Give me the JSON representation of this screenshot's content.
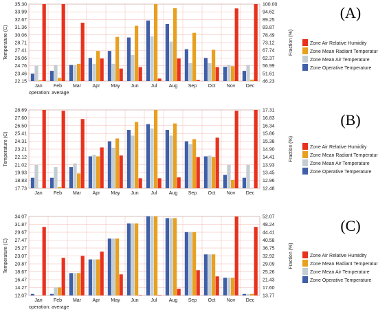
{
  "colors": {
    "humidity": "#e8321e",
    "radiant": "#e8a020",
    "mean_air": "#c3cdd2",
    "operative": "#3f5fa8",
    "grid": "#f0b8b0"
  },
  "chart_data": [
    {
      "type": "bar",
      "panel_label": "(A)",
      "ylabel_left": "Temperature (C)",
      "ylabel_right": "Fraction (%)",
      "note": "operation: average",
      "categories": [
        "Jan",
        "Feb",
        "Mar",
        "Apr",
        "May",
        "Jun",
        "Jul",
        "Aug",
        "Sep",
        "Oct",
        "Nov",
        "Dec"
      ],
      "yticks_left": [
        "22.15",
        "23.46",
        "24.76",
        "26.06",
        "27.41",
        "28.71",
        "30.06",
        "31.36",
        "32.67",
        "33.99",
        "35.30"
      ],
      "yticks_right": [
        "46.23",
        "51.61",
        "56.99",
        "62.37",
        "67.74",
        "73.12",
        "78.49",
        "83.87",
        "89.25",
        "94.62",
        "100.00"
      ],
      "ylim": [
        22.15,
        35.3
      ],
      "rlim": [
        46.23,
        100.0
      ],
      "series": [
        {
          "name": "Zone Operative Temperature",
          "values": [
            23.4,
            23.9,
            24.9,
            26.1,
            27.3,
            29.6,
            32.5,
            31.9,
            27.6,
            26.1,
            24.6,
            23.9
          ]
        },
        {
          "name": "Zone Mean Air Temperature",
          "values": [
            24.8,
            24.9,
            24.9,
            25.1,
            25.1,
            26.6,
            29.8,
            28.9,
            25.2,
            25.2,
            24.9,
            24.9
          ]
        },
        {
          "name": "Zone Mean Radiant Temperature",
          "values": [
            22.3,
            22.7,
            25.1,
            27.3,
            29.7,
            31.6,
            35.3,
            34.6,
            30.4,
            27.5,
            24.7,
            22.4
          ]
        },
        {
          "name": "Zone Air Relative Humidity",
          "axis": "right",
          "values": [
            100.0,
            100.0,
            87.0,
            62.0,
            55.0,
            56.0,
            48.0,
            62.0,
            47.0,
            56.0,
            97.0,
            100.0
          ]
        }
      ],
      "legend": [
        "Zone Air Relative Humidity",
        "Zone Mean Radiant Temperature",
        "Zone Mean Air Temperature",
        "Zone Operative Temperature"
      ]
    },
    {
      "type": "bar",
      "panel_label": "(B)",
      "ylabel_left": "Temperature (C)",
      "ylabel_right": "Fraction (%)",
      "note": "",
      "categories": [
        "Jan",
        "Feb",
        "Mar",
        "Apr",
        "May",
        "Jun",
        "Jul",
        "Aug",
        "Sep",
        "Oct",
        "Nov",
        "Dec"
      ],
      "yticks_left": [
        "17.73",
        "18.83",
        "19.93",
        "21.02",
        "22.12",
        "23.21",
        "24.31",
        "25.41",
        "26.50",
        "27.60",
        "28.69"
      ],
      "yticks_right": [
        "12.48",
        "12.96",
        "13.45",
        "13.93",
        "14.41",
        "14.90",
        "15.38",
        "15.86",
        "16.34",
        "16.83",
        "17.31"
      ],
      "ylim": [
        17.73,
        28.69
      ],
      "rlim": [
        12.48,
        17.31
      ],
      "series": [
        {
          "name": "Zone Operative Temperature",
          "values": [
            19.2,
            19.2,
            20.7,
            22.2,
            24.3,
            25.9,
            26.7,
            25.9,
            24.3,
            22.2,
            19.6,
            19.2
          ]
        },
        {
          "name": "Zone Mean Air Temperature",
          "values": [
            21.0,
            20.7,
            21.2,
            22.4,
            23.4,
            25.1,
            26.1,
            25.1,
            23.9,
            22.3,
            21.0,
            21.0
          ]
        },
        {
          "name": "Zone Mean Radiant Temperature",
          "values": [
            17.7,
            17.9,
            19.8,
            22.2,
            24.7,
            27.0,
            28.7,
            26.8,
            24.6,
            22.1,
            18.9,
            17.7
          ]
        },
        {
          "name": "Zone Air Relative Humidity",
          "axis": "right",
          "values": [
            17.31,
            17.26,
            16.75,
            15.0,
            14.5,
            13.1,
            13.1,
            13.15,
            14.4,
            15.6,
            17.26,
            17.31
          ]
        }
      ],
      "legend": [
        "Zone Air Relative Humidity",
        "Zone Mean Radiant Temperature",
        "Zone Mean Air Temperature",
        "Zone Operative Temperature"
      ]
    },
    {
      "type": "bar",
      "panel_label": "(C)",
      "ylabel_left": "Temperature (C)",
      "ylabel_right": "Fraction (%)",
      "note": "operation: average",
      "categories": [
        "Jan",
        "Feb",
        "Mar",
        "Apr",
        "May",
        "Jun",
        "Jul",
        "Aug",
        "Sep",
        "Oct",
        "Nov",
        "Dec"
      ],
      "yticks_left": [
        "12.07",
        "14.27",
        "16.47",
        "18.67",
        "20.87",
        "23.07",
        "25.27",
        "27.47",
        "29.67",
        "31.87",
        "34.07"
      ],
      "yticks_right": [
        "13.77",
        "17.60",
        "21.43",
        "25.26",
        "29.09",
        "32.92",
        "36.75",
        "40.58",
        "44.41",
        "48.24",
        "52.07"
      ],
      "ylim": [
        12.07,
        34.07
      ],
      "rlim": [
        13.77,
        52.07
      ],
      "series": [
        {
          "name": "Zone Operative Temperature",
          "values": [
            12.5,
            12.5,
            18.3,
            22.1,
            27.9,
            32.1,
            34.1,
            33.6,
            29.7,
            23.5,
            17.0,
            12.5
          ]
        },
        {
          "name": "Zone Mean Air Temperature",
          "values": [
            12.1,
            14.3,
            18.3,
            22.1,
            27.9,
            32.1,
            34.1,
            33.6,
            29.7,
            23.5,
            17.0,
            12.5
          ]
        },
        {
          "name": "Zone Mean Radiant Temperature",
          "values": [
            12.1,
            14.3,
            18.3,
            22.1,
            27.9,
            32.1,
            34.1,
            33.6,
            29.7,
            23.5,
            17.0,
            12.5
          ]
        },
        {
          "name": "Zone Air Relative Humidity",
          "axis": "right",
          "values": [
            47.0,
            32.0,
            33.0,
            35.0,
            24.0,
            14.0,
            14.0,
            17.0,
            26.0,
            23.0,
            52.0,
            47.0
          ]
        }
      ],
      "legend": [
        "Zone Air Relative Humidity",
        "Zone Mean Radiant Temperature",
        "Zone Mean Air Temperature",
        "Zone Operative Temperature"
      ]
    }
  ]
}
